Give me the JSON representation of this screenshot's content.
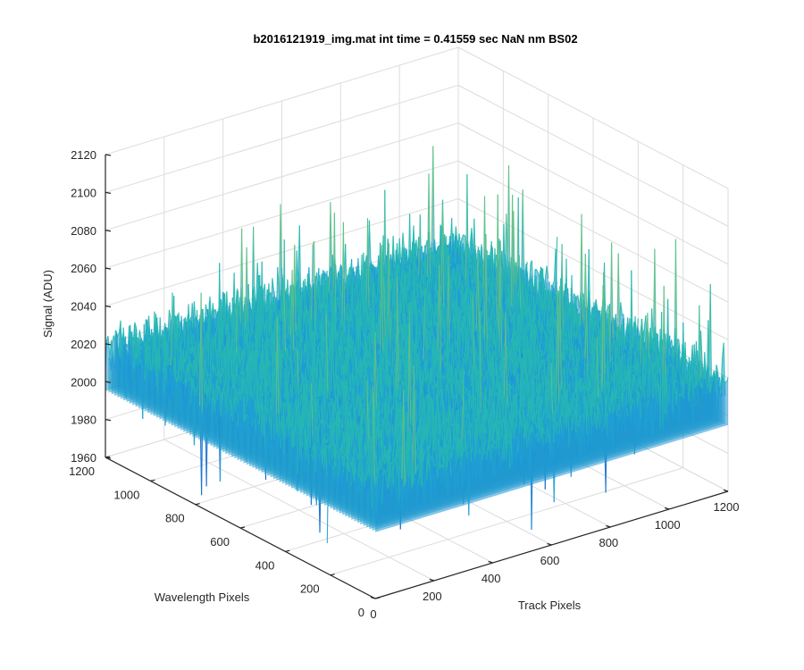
{
  "chart_data": {
    "type": "surface",
    "title": "b2016121919_img.mat int time = 0.41559 sec  NaN nm BS02",
    "xlabel": "Track Pixels",
    "ylabel": "Wavelength Pixels",
    "zlabel": "Signal (ADU)",
    "x_ticks": [
      0,
      200,
      400,
      600,
      800,
      1000,
      1200
    ],
    "y_ticks": [
      0,
      200,
      400,
      600,
      800,
      1000,
      1200
    ],
    "z_ticks": [
      1960,
      1980,
      2000,
      2020,
      2040,
      2060,
      2080,
      2100,
      2120
    ],
    "xlim": [
      0,
      1200
    ],
    "ylim": [
      0,
      1200
    ],
    "zlim": [
      1960,
      2120
    ],
    "grid": true,
    "surface_summary": {
      "mean_signal": 2015,
      "typical_range": [
        1985,
        2045
      ],
      "peak_max": 2105,
      "trough_min": 1955
    },
    "colormap_colors": [
      "#1a6fd1",
      "#1f9fd6",
      "#27b8b3",
      "#5fc08a",
      "#b3c65a"
    ]
  },
  "ticks_fmt": {
    "x": [
      "0",
      "200",
      "400",
      "600",
      "800",
      "1000",
      "1200"
    ],
    "y": [
      "0",
      "200",
      "400",
      "600",
      "800",
      "1000",
      "1200"
    ],
    "z": [
      "1960",
      "1980",
      "2000",
      "2020",
      "2040",
      "2060",
      "2080",
      "2100",
      "2120"
    ]
  }
}
